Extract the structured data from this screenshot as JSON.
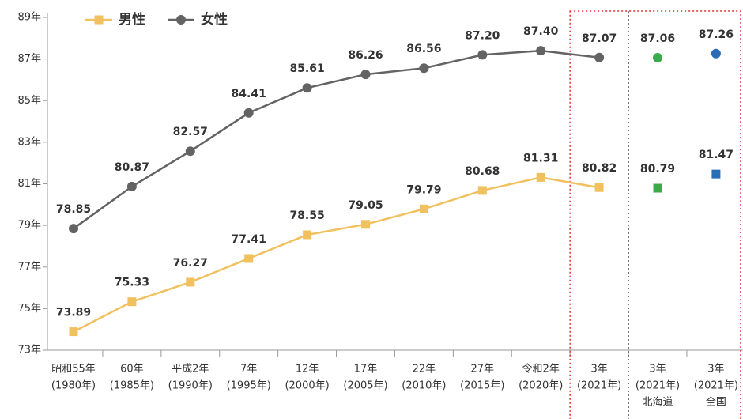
{
  "chart_data": {
    "type": "line",
    "categories": [
      [
        "昭和55年",
        "(1980年)"
      ],
      [
        "60年",
        "(1985年)"
      ],
      [
        "平成2年",
        "(1990年)"
      ],
      [
        "7年",
        "(1995年)"
      ],
      [
        "12年",
        "(2000年)"
      ],
      [
        "17年",
        "(2005年)"
      ],
      [
        "22年",
        "(2010年)"
      ],
      [
        "27年",
        "(2015年)"
      ],
      [
        "令和2年",
        "(2020年)"
      ],
      [
        "3年",
        "(2021年)"
      ],
      [
        "3年",
        "(2021年)",
        "北海道"
      ],
      [
        "3年",
        "(2021年)",
        "全国"
      ]
    ],
    "series": [
      {
        "name": "男性",
        "color": "#f0c15e",
        "marker": "square",
        "values": [
          73.89,
          75.33,
          76.27,
          77.41,
          78.55,
          79.05,
          79.79,
          80.68,
          81.31,
          80.82,
          80.79,
          81.47
        ],
        "value_labels": [
          "73.89",
          "75.33",
          "76.27",
          "77.41",
          "78.55",
          "79.05",
          "79.79",
          "80.68",
          "81.31",
          "80.82",
          "80.79",
          "81.47"
        ],
        "marker_colors": [
          "#f0c15e",
          "#f0c15e",
          "#f0c15e",
          "#f0c15e",
          "#f0c15e",
          "#f0c15e",
          "#f0c15e",
          "#f0c15e",
          "#f0c15e",
          "#f0c15e",
          "#3aaa4a",
          "#2a6db5"
        ]
      },
      {
        "name": "女性",
        "color": "#636363",
        "marker": "circle",
        "values": [
          78.85,
          80.87,
          82.57,
          84.41,
          85.61,
          86.26,
          86.56,
          87.2,
          87.4,
          87.07,
          87.06,
          87.26
        ],
        "value_labels": [
          "78.85",
          "80.87",
          "82.57",
          "84.41",
          "85.61",
          "86.26",
          "86.56",
          "87.20",
          "87.40",
          "87.07",
          "87.06",
          "87.26"
        ],
        "marker_colors": [
          "#636363",
          "#636363",
          "#636363",
          "#636363",
          "#636363",
          "#636363",
          "#636363",
          "#636363",
          "#636363",
          "#636363",
          "#3aaa4a",
          "#2a6db5"
        ]
      }
    ],
    "ylim": [
      73,
      89
    ],
    "yticks": [
      {
        "value": 73,
        "label": "73年"
      },
      {
        "value": 75,
        "label": "75年"
      },
      {
        "value": 77,
        "label": "77年"
      },
      {
        "value": 79,
        "label": "79年"
      },
      {
        "value": 81,
        "label": "81年"
      },
      {
        "value": 83,
        "label": "83年"
      },
      {
        "value": 85,
        "label": "85年"
      },
      {
        "value": 87,
        "label": "87年"
      },
      {
        "value": 89,
        "label": "89年"
      }
    ],
    "legend": "top-left"
  }
}
